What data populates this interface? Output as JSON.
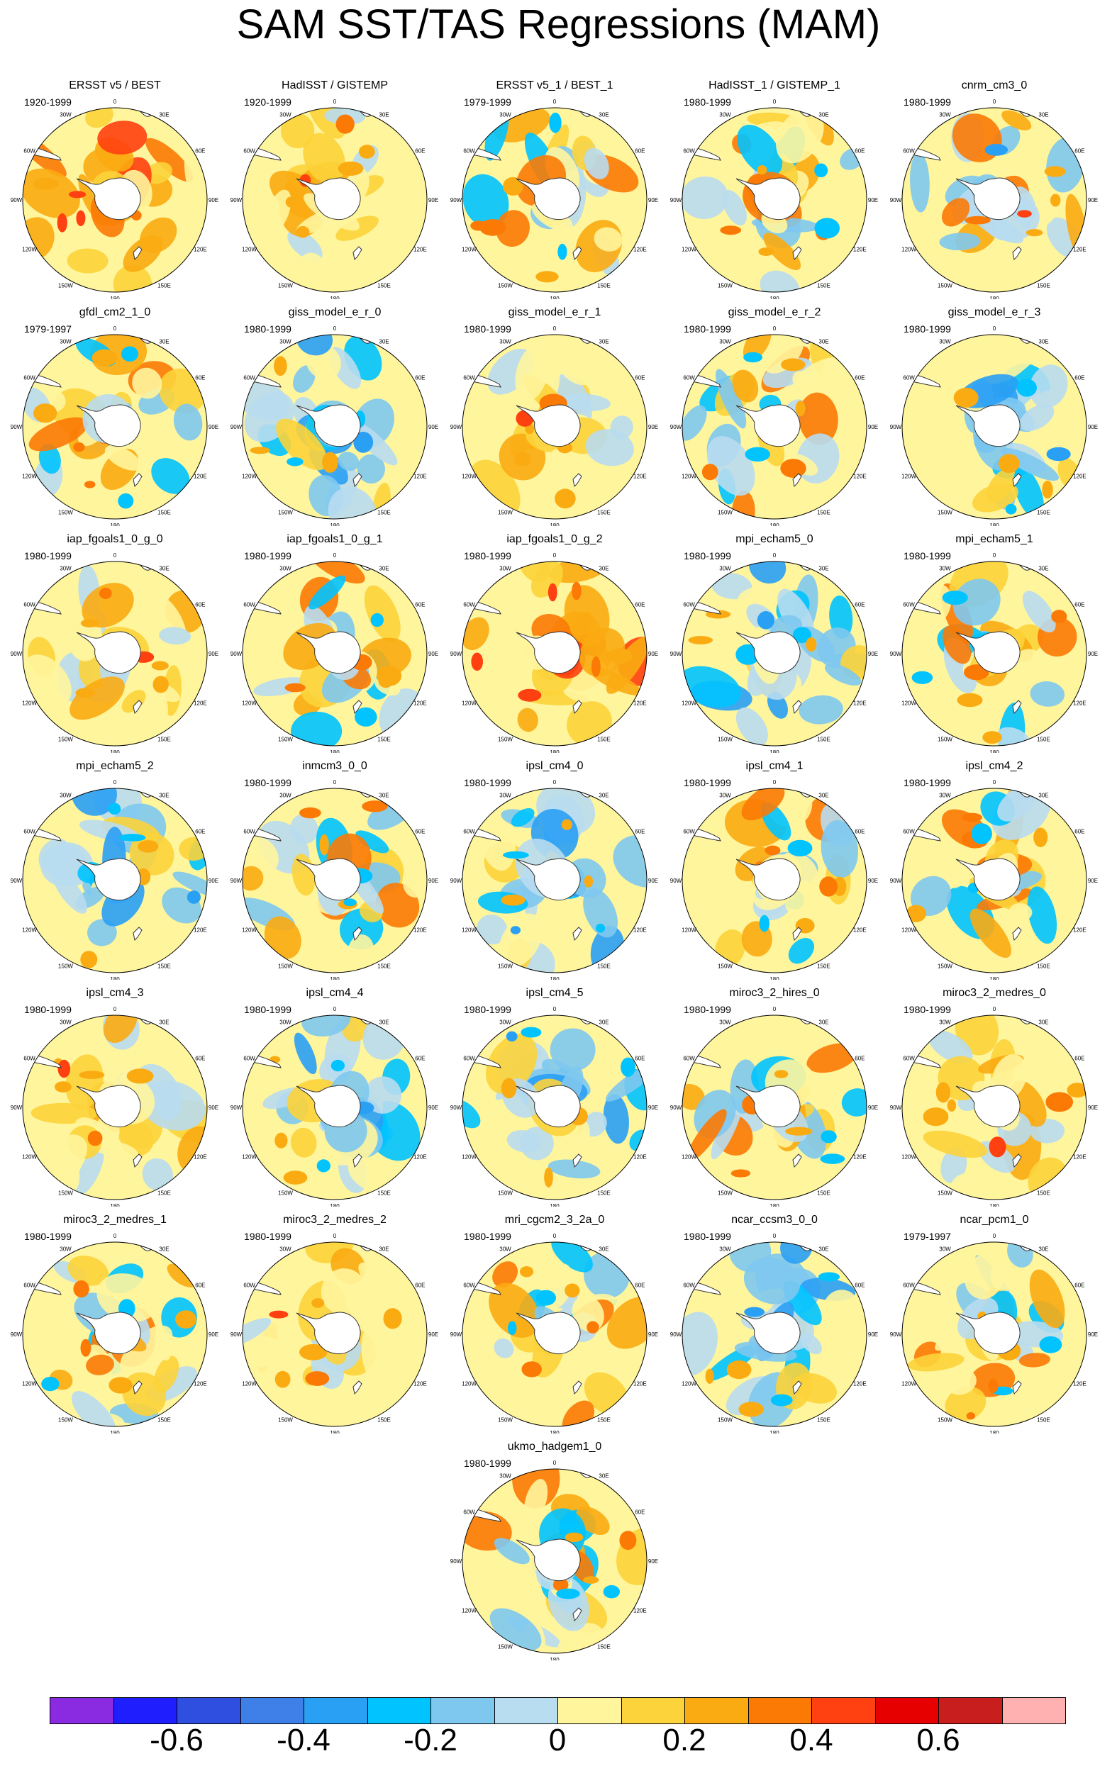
{
  "title": "SAM SST/TAS Regressions (MAM)",
  "panels": [
    {
      "name": "ERSST v5 / BEST",
      "period": "1920-1999",
      "pattern": "warm"
    },
    {
      "name": "HadISST / GISTEMP",
      "period": "1920-1999",
      "pattern": "weak-warm"
    },
    {
      "name": "ERSST v5_1 / BEST_1",
      "period": "1979-1999",
      "pattern": "mixed"
    },
    {
      "name": "HadISST_1 / GISTEMP_1",
      "period": "1980-1999",
      "pattern": "mixed"
    },
    {
      "name": "cnrm_cm3_0",
      "period": "1980-1999",
      "pattern": "cool-ring"
    },
    {
      "name": "gfdl_cm2_1_0",
      "period": "1979-1997",
      "pattern": "mixed"
    },
    {
      "name": "giss_model_e_r_0",
      "period": "1980-1999",
      "pattern": "cool"
    },
    {
      "name": "giss_model_e_r_1",
      "period": "1980-1999",
      "pattern": "weak-warm"
    },
    {
      "name": "giss_model_e_r_2",
      "period": "1980-1999",
      "pattern": "mixed"
    },
    {
      "name": "giss_model_e_r_3",
      "period": "1980-1999",
      "pattern": "cool"
    },
    {
      "name": "iap_fgoals1_0_g_0",
      "period": "1980-1999",
      "pattern": "weak-warm"
    },
    {
      "name": "iap_fgoals1_0_g_1",
      "period": "1980-1999",
      "pattern": "mixed"
    },
    {
      "name": "iap_fgoals1_0_g_2",
      "period": "1980-1999",
      "pattern": "warm"
    },
    {
      "name": "mpi_echam5_0",
      "period": "1980-1999",
      "pattern": "cool"
    },
    {
      "name": "mpi_echam5_1",
      "period": "1980-1999",
      "pattern": "mixed"
    },
    {
      "name": "mpi_echam5_2",
      "period": "",
      "pattern": "cool"
    },
    {
      "name": "inmcm3_0_0",
      "period": "1980-1999",
      "pattern": "mixed"
    },
    {
      "name": "ipsl_cm4_0",
      "period": "1980-1999",
      "pattern": "cool"
    },
    {
      "name": "ipsl_cm4_1",
      "period": "1980-1999",
      "pattern": "mixed"
    },
    {
      "name": "ipsl_cm4_2",
      "period": "1980-1999",
      "pattern": "mixed"
    },
    {
      "name": "ipsl_cm4_3",
      "period": "1980-1999",
      "pattern": "weak-warm"
    },
    {
      "name": "ipsl_cm4_4",
      "period": "1980-1999",
      "pattern": "cool"
    },
    {
      "name": "ipsl_cm4_5",
      "period": "1980-1999",
      "pattern": "cool"
    },
    {
      "name": "miroc3_2_hires_0",
      "period": "1980-1999",
      "pattern": "mixed"
    },
    {
      "name": "miroc3_2_medres_0",
      "period": "1980-1999",
      "pattern": "weak-warm"
    },
    {
      "name": "miroc3_2_medres_1",
      "period": "1980-1999",
      "pattern": "mixed"
    },
    {
      "name": "miroc3_2_medres_2",
      "period": "1980-1999",
      "pattern": "weak-warm"
    },
    {
      "name": "mri_cgcm2_3_2a_0",
      "period": "1980-1999",
      "pattern": "mixed"
    },
    {
      "name": "ncar_ccsm3_0_0",
      "period": "1980-1999",
      "pattern": "cool"
    },
    {
      "name": "ncar_pcm1_0",
      "period": "1979-1997",
      "pattern": "mixed"
    },
    {
      "name": "ukmo_hadgem1_0",
      "period": "1980-1999",
      "pattern": "mixed"
    }
  ],
  "map_labels": {
    "top": "0",
    "top_right": "30E",
    "right_upper": "60E",
    "right": "90E",
    "right_lower": "120E",
    "bottom_right": "150E",
    "bottom": "180",
    "bottom_left": "150W",
    "left_lower": "120W",
    "left": "90W",
    "left_upper": "60W",
    "top_left": "30W"
  },
  "colorbar": {
    "colors": [
      "#8a2be2",
      "#1e1eff",
      "#2f4fe0",
      "#3f7fe8",
      "#2aa0f5",
      "#00c3ff",
      "#7ec8f0",
      "#b8dcf0",
      "#fff59d",
      "#fcd33a",
      "#fbab12",
      "#fb7a05",
      "#ff4010",
      "#e60000",
      "#c81e1e",
      "#ffb0b0"
    ],
    "ticks": [
      "-0.6",
      "-0.4",
      "-0.2",
      "0",
      "0.2",
      "0.4",
      "0.6"
    ]
  }
}
